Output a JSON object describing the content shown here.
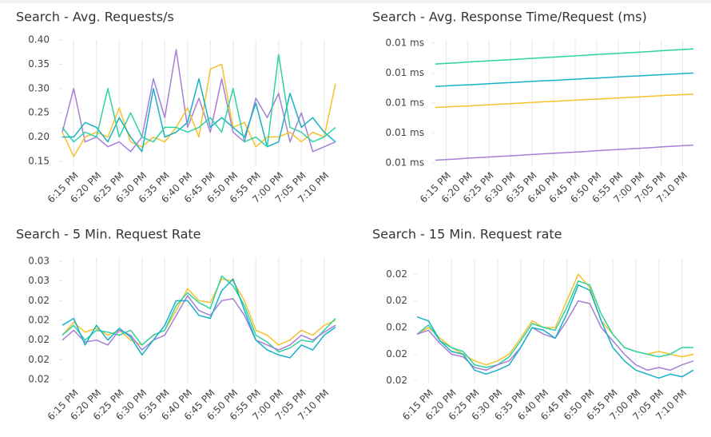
{
  "chart_data": [
    {
      "type": "line",
      "title": "Search - Avg. Requests/s",
      "categories": [
        null,
        "6:15 PM",
        null,
        "6:20 PM",
        null,
        "6:25 PM",
        null,
        "6:30 PM",
        null,
        "6:35 PM",
        null,
        "6:40 PM",
        null,
        "6:45 PM",
        null,
        "6:50 PM",
        null,
        "6:55 PM",
        null,
        "7:00 PM",
        null,
        "7:05 PM",
        null,
        "7:10 PM",
        null
      ],
      "ylim": [
        0.14,
        0.4
      ],
      "yticks": [
        0.15,
        {
          "value": 0.2,
          "label": "0.20"
        },
        0.25,
        {
          "value": 0.3,
          "label": "0.30"
        },
        0.35,
        {
          "value": 0.4,
          "label": "0.40"
        }
      ],
      "grid": true,
      "series": [
        {
          "color": "#a77fd6",
          "values": [
            0.21,
            0.3,
            0.19,
            0.2,
            0.18,
            0.19,
            0.17,
            0.2,
            0.32,
            0.24,
            0.38,
            0.22,
            0.28,
            0.21,
            0.32,
            0.21,
            0.19,
            0.28,
            0.24,
            0.29,
            0.19,
            0.25,
            0.17,
            0.18,
            0.19
          ]
        },
        {
          "color": "#f5c22b",
          "values": [
            0.21,
            0.16,
            0.2,
            0.21,
            0.2,
            0.26,
            0.19,
            0.18,
            0.2,
            0.19,
            0.22,
            0.26,
            0.2,
            0.34,
            0.35,
            0.22,
            0.23,
            0.18,
            0.2,
            0.2,
            0.21,
            0.19,
            0.21,
            0.2,
            0.31
          ]
        },
        {
          "color": "#17b1c6",
          "values": [
            0.2,
            0.2,
            0.23,
            0.22,
            0.19,
            0.24,
            0.2,
            0.17,
            0.3,
            0.2,
            0.21,
            0.23,
            0.32,
            0.22,
            0.24,
            0.22,
            0.2,
            0.27,
            0.18,
            0.19,
            0.29,
            0.22,
            0.24,
            0.21,
            0.19
          ]
        },
        {
          "color": "#2ed3a5",
          "values": [
            0.22,
            0.19,
            0.21,
            0.2,
            0.3,
            0.2,
            0.25,
            0.2,
            0.19,
            0.22,
            0.22,
            0.21,
            0.22,
            0.24,
            0.21,
            0.3,
            0.19,
            0.2,
            0.18,
            0.37,
            0.22,
            0.21,
            0.19,
            0.2,
            0.22
          ]
        }
      ]
    },
    {
      "type": "line",
      "title": "Search - Avg. Response Time/Request (ms)",
      "categories": [
        null,
        "6:15 PM",
        null,
        "6:20 PM",
        null,
        "6:25 PM",
        null,
        "6:30 PM",
        null,
        "6:35 PM",
        null,
        "6:40 PM",
        null,
        "6:45 PM",
        null,
        "6:50 PM",
        null,
        "6:55 PM",
        null,
        "7:00 PM",
        null,
        "7:05 PM",
        null,
        "7:10 PM",
        null
      ],
      "ylim": [
        0.01058,
        0.01142
      ],
      "yticks": [
        {
          "value": 0.0106,
          "label": "0.01 ms"
        },
        {
          "value": 0.0108,
          "label": "0.01 ms"
        },
        {
          "value": 0.011,
          "label": "0.01 ms"
        },
        {
          "value": 0.0112,
          "label": "0.01 ms"
        },
        {
          "value": 0.0114,
          "label": "0.01 ms"
        }
      ],
      "grid": true,
      "series": [
        {
          "color": "#2ed3a5",
          "values": [
            0.01126,
            0.011264,
            0.011268,
            0.011273,
            0.011277,
            0.011281,
            0.011285,
            0.011289,
            0.011293,
            0.011298,
            0.011302,
            0.011306,
            0.01131,
            0.011314,
            0.011318,
            0.011323,
            0.011327,
            0.011331,
            0.011335,
            0.011339,
            0.011343,
            0.011348,
            0.011352,
            0.011356,
            0.01136
          ]
        },
        {
          "color": "#17b1c6",
          "values": [
            0.01111,
            0.011114,
            0.011118,
            0.011121,
            0.011125,
            0.011129,
            0.011133,
            0.011136,
            0.01114,
            0.011144,
            0.011148,
            0.011151,
            0.011155,
            0.011159,
            0.011163,
            0.011166,
            0.01117,
            0.011174,
            0.011178,
            0.011181,
            0.011185,
            0.011189,
            0.011193,
            0.011196,
            0.0112
          ]
        },
        {
          "color": "#f5c22b",
          "values": [
            0.01097,
            0.010974,
            0.010978,
            0.010981,
            0.010985,
            0.010989,
            0.010993,
            0.010996,
            0.011,
            0.011004,
            0.011008,
            0.011011,
            0.011015,
            0.011019,
            0.011023,
            0.011026,
            0.01103,
            0.011034,
            0.011038,
            0.011041,
            0.011045,
            0.011049,
            0.011053,
            0.011056,
            0.01106
          ]
        },
        {
          "color": "#a77fd6",
          "values": [
            0.01062,
            0.010624,
            0.010628,
            0.010633,
            0.010637,
            0.010641,
            0.010645,
            0.010649,
            0.010653,
            0.010658,
            0.010662,
            0.010666,
            0.01067,
            0.010674,
            0.010678,
            0.010683,
            0.010687,
            0.010691,
            0.010695,
            0.010699,
            0.010703,
            0.010708,
            0.010712,
            0.010716,
            0.01072
          ]
        }
      ]
    },
    {
      "type": "line",
      "title": "Search - 5 Min. Request Rate",
      "categories": [
        null,
        "6:15 PM",
        null,
        "6:20 PM",
        null,
        "6:25 PM",
        null,
        "6:30 PM",
        null,
        "6:35 PM",
        null,
        "6:40 PM",
        null,
        "6:45 PM",
        null,
        "6:50 PM",
        null,
        "6:55 PM",
        null,
        "7:00 PM",
        null,
        "7:05 PM",
        null,
        "7:10 PM",
        null
      ],
      "ylim": [
        0.0156,
        0.0284
      ],
      "yticks": [
        {
          "value": 0.016,
          "label": "0.02"
        },
        {
          "value": 0.018,
          "label": "0.02"
        },
        {
          "value": 0.02,
          "label": "0.02"
        },
        {
          "value": 0.022,
          "label": "0.02"
        },
        {
          "value": 0.024,
          "label": "0.02"
        },
        {
          "value": 0.026,
          "label": "0.03"
        },
        {
          "value": 0.028,
          "label": "0.03"
        }
      ],
      "grid": true,
      "series": [
        {
          "color": "#f5c22b",
          "values": [
            0.0205,
            0.0218,
            0.0208,
            0.0212,
            0.0205,
            0.021,
            0.02,
            0.0195,
            0.0205,
            0.021,
            0.023,
            0.0252,
            0.024,
            0.0238,
            0.0262,
            0.026,
            0.024,
            0.021,
            0.0205,
            0.0195,
            0.02,
            0.021,
            0.0205,
            0.0215,
            0.022
          ]
        },
        {
          "color": "#2ed3a5",
          "values": [
            0.0205,
            0.0215,
            0.02,
            0.021,
            0.0208,
            0.0205,
            0.021,
            0.0195,
            0.0205,
            0.021,
            0.0235,
            0.0248,
            0.0238,
            0.0232,
            0.0265,
            0.0255,
            0.0235,
            0.0205,
            0.0198,
            0.0188,
            0.0192,
            0.02,
            0.0198,
            0.021,
            0.0222
          ]
        },
        {
          "color": "#a77fd6",
          "values": [
            0.02,
            0.021,
            0.0198,
            0.02,
            0.0195,
            0.021,
            0.0205,
            0.019,
            0.02,
            0.0205,
            0.0225,
            0.0245,
            0.023,
            0.0225,
            0.024,
            0.0242,
            0.0225,
            0.02,
            0.0195,
            0.019,
            0.0195,
            0.0205,
            0.02,
            0.0208,
            0.0215
          ]
        },
        {
          "color": "#17b1c6",
          "values": [
            0.0215,
            0.0222,
            0.0195,
            0.0215,
            0.02,
            0.0212,
            0.0203,
            0.0185,
            0.02,
            0.0215,
            0.024,
            0.024,
            0.0225,
            0.0222,
            0.025,
            0.0262,
            0.023,
            0.02,
            0.019,
            0.0185,
            0.0182,
            0.0195,
            0.019,
            0.0205,
            0.0213
          ]
        }
      ]
    },
    {
      "type": "line",
      "title": "Search - 15 Min. Request rate",
      "categories": [
        null,
        "6:15 PM",
        null,
        "6:20 PM",
        null,
        "6:25 PM",
        null,
        "6:30 PM",
        null,
        "6:35 PM",
        null,
        "6:40 PM",
        null,
        "6:45 PM",
        null,
        "6:50 PM",
        null,
        "6:55 PM",
        null,
        "7:00 PM",
        null,
        "7:05 PM",
        null,
        "7:10 PM",
        null
      ],
      "ylim": [
        0.0158,
        0.0251
      ],
      "yticks": [
        {
          "value": 0.016,
          "label": "0.02"
        },
        {
          "value": 0.018,
          "label": "0.02"
        },
        {
          "value": 0.02,
          "label": "0.02"
        },
        {
          "value": 0.022,
          "label": "0.02"
        },
        {
          "value": 0.024,
          "label": "0.02"
        }
      ],
      "grid": true,
      "series": [
        {
          "color": "#f5c22b",
          "values": [
            0.0195,
            0.02,
            0.0192,
            0.0185,
            0.018,
            0.0175,
            0.0172,
            0.0175,
            0.018,
            0.0192,
            0.0205,
            0.02,
            0.02,
            0.022,
            0.024,
            0.023,
            0.0205,
            0.0195,
            0.0185,
            0.0182,
            0.018,
            0.0182,
            0.018,
            0.0178,
            0.018
          ]
        },
        {
          "color": "#2ed3a5",
          "values": [
            0.0195,
            0.0202,
            0.019,
            0.0185,
            0.0182,
            0.0172,
            0.017,
            0.0172,
            0.0178,
            0.019,
            0.0203,
            0.02,
            0.0198,
            0.0215,
            0.0235,
            0.0232,
            0.021,
            0.0195,
            0.0185,
            0.0182,
            0.018,
            0.0178,
            0.018,
            0.0185,
            0.0185
          ]
        },
        {
          "color": "#a77fd6",
          "values": [
            0.0195,
            0.0198,
            0.0188,
            0.018,
            0.0178,
            0.017,
            0.0168,
            0.0172,
            0.0175,
            0.0185,
            0.02,
            0.0195,
            0.0192,
            0.0205,
            0.022,
            0.0218,
            0.02,
            0.019,
            0.018,
            0.0172,
            0.0168,
            0.017,
            0.0168,
            0.0172,
            0.0175
          ]
        },
        {
          "color": "#17b1c6",
          "values": [
            0.0208,
            0.0205,
            0.019,
            0.0182,
            0.018,
            0.0168,
            0.0165,
            0.0168,
            0.0172,
            0.0185,
            0.02,
            0.0198,
            0.0192,
            0.021,
            0.0232,
            0.0228,
            0.0205,
            0.0185,
            0.0175,
            0.0168,
            0.0165,
            0.0162,
            0.0165,
            0.0163,
            0.0168
          ]
        }
      ]
    }
  ]
}
